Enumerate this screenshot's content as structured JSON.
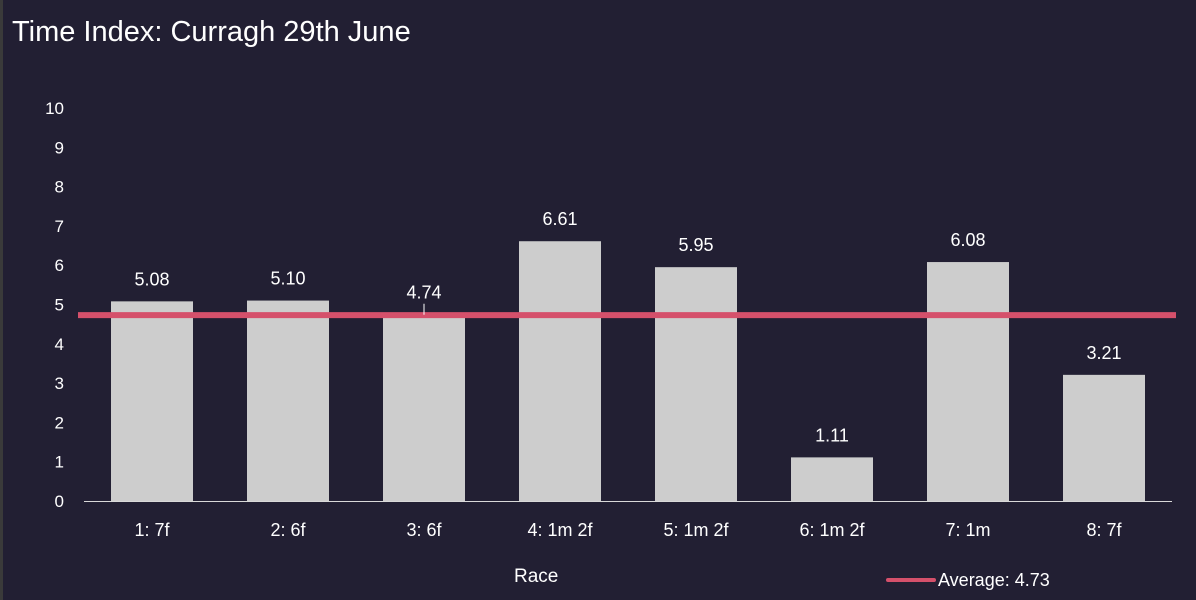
{
  "chart_data": {
    "type": "bar",
    "title": "Time Index: Curragh 29th June",
    "xlabel": "Race",
    "ylabel": "",
    "ylim": [
      0,
      10
    ],
    "yticks": [
      "0",
      "1",
      "2",
      "3",
      "4",
      "5",
      "6",
      "7",
      "8",
      "9",
      "10"
    ],
    "categories": [
      "1: 7f",
      "2: 6f",
      "3: 6f",
      "4: 1m 2f",
      "5: 1m 2f",
      "6: 1m 2f",
      "7: 1m",
      "8: 7f"
    ],
    "values": [
      5.08,
      5.1,
      4.74,
      6.61,
      5.95,
      1.11,
      6.08,
      3.21
    ],
    "value_labels": [
      "5.08",
      "5.10",
      "4.74",
      "6.61",
      "5.95",
      "1.11",
      "6.08",
      "3.21"
    ],
    "average": {
      "label": "Average: 4.73",
      "value": 4.73
    },
    "legend_position": "bottom-right",
    "grid": false,
    "colors": {
      "bar": "#cdcdcd",
      "average_line": "#d5506b",
      "background": "#221f33",
      "axis": "#d9d9d9",
      "text": "#ffffff"
    }
  }
}
